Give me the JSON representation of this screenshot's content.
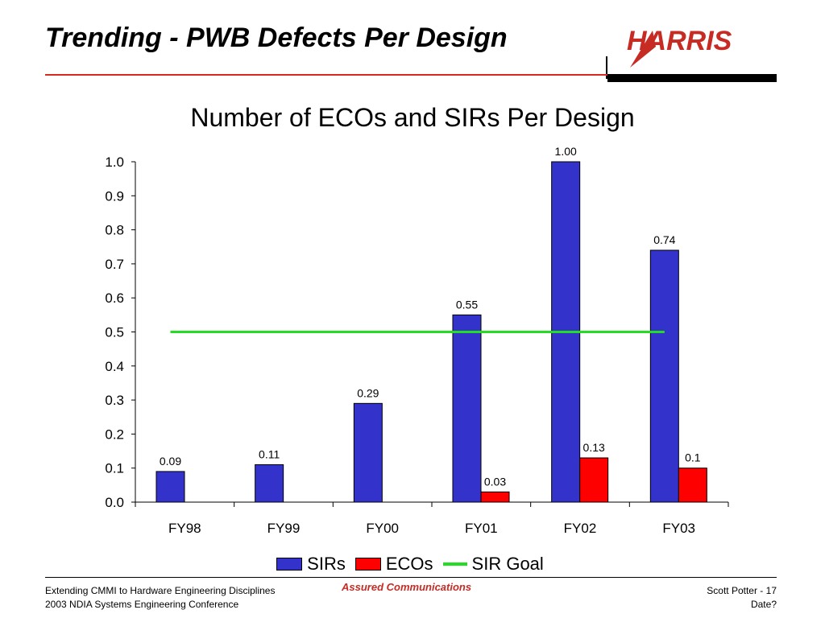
{
  "slide": {
    "title": "Trending - PWB Defects Per Design",
    "logo_text": "HARRIS"
  },
  "chart_data": {
    "type": "bar",
    "title": "Number of ECOs and SIRs Per Design",
    "categories": [
      "FY98",
      "FY99",
      "FY00",
      "FY01",
      "FY02",
      "FY03"
    ],
    "series": [
      {
        "name": "SIRs",
        "color": "#3333cc",
        "values": [
          0.09,
          0.11,
          0.29,
          0.55,
          1.0,
          0.74
        ],
        "labels": [
          "0.09",
          "0.11",
          "0.29",
          "0.55",
          "1.00",
          "0.74"
        ]
      },
      {
        "name": "ECOs",
        "color": "#ff0000",
        "values": [
          null,
          null,
          null,
          0.03,
          0.13,
          0.1
        ],
        "labels": [
          "",
          "",
          "",
          "0.03",
          "0.13",
          "0.1"
        ]
      }
    ],
    "goal_line": {
      "name": "SIR Goal",
      "value": 0.5,
      "color": "#22dd22"
    },
    "ylim": [
      0,
      1.0
    ],
    "yticks": [
      "0.0",
      "0.1",
      "0.2",
      "0.3",
      "0.4",
      "0.5",
      "0.6",
      "0.7",
      "0.8",
      "0.9",
      "1.0"
    ],
    "xlabel": "",
    "ylabel": "",
    "grid": false,
    "legend_position": "bottom"
  },
  "footer": {
    "left_line1": "Extending CMMI to Hardware Engineering Disciplines",
    "left_line2": "2003 NDIA Systems Engineering Conference",
    "center": "Assured Communications",
    "right_line1": "Scott Potter - 17",
    "right_line2": "Date?"
  }
}
